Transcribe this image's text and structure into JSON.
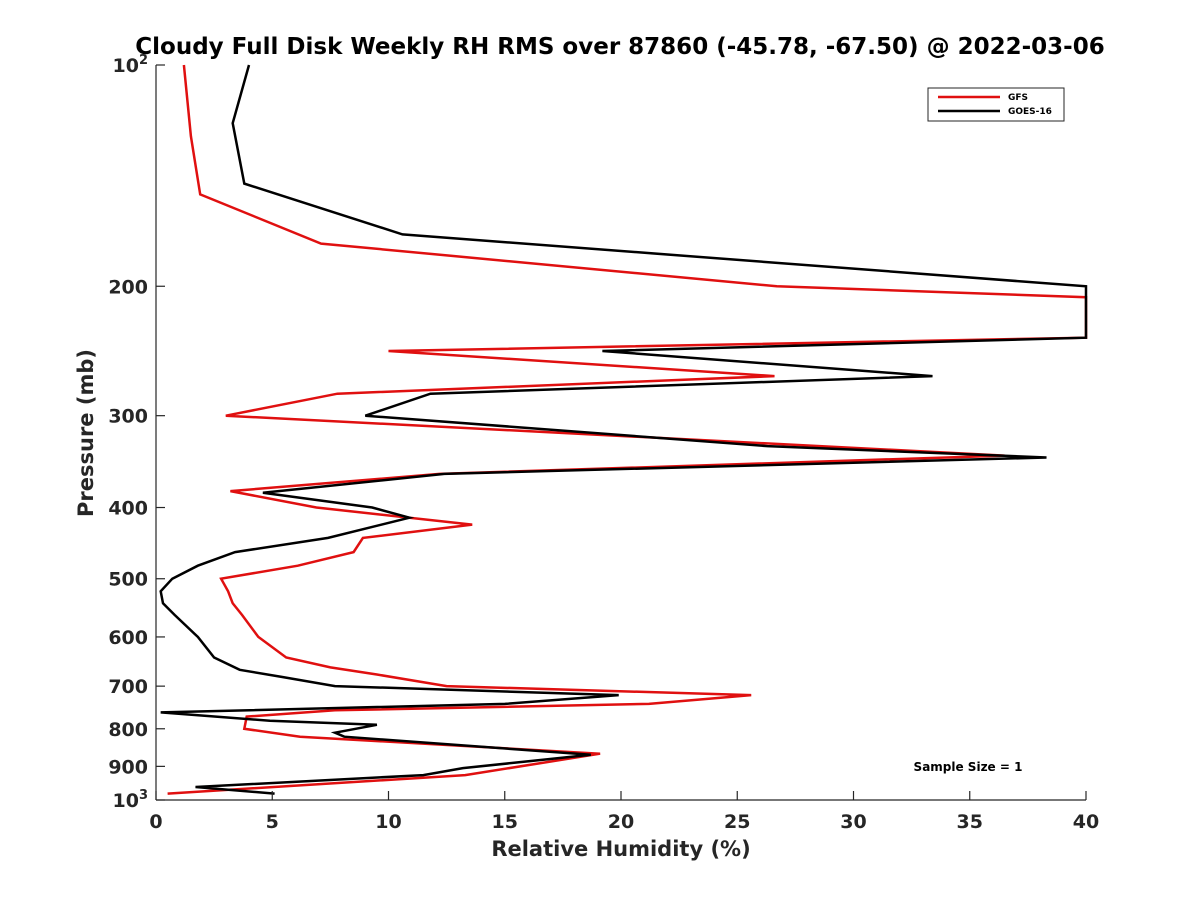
{
  "chart_data": {
    "type": "line",
    "title": "Cloudy Full Disk Weekly RH RMS over 87860 (-45.78, -67.50) @ 2022-03-06",
    "xlabel": "Relative Humidity (%)",
    "ylabel": "Pressure (mb)",
    "xlim": [
      0,
      40
    ],
    "ylim": [
      100,
      1000
    ],
    "yscale": "log",
    "y_reversed": true,
    "grid": false,
    "legend_position": "top-right",
    "x_ticks": [
      0,
      5,
      10,
      15,
      20,
      25,
      30,
      35,
      40
    ],
    "y_ticks": [
      {
        "value": 100,
        "base": "10",
        "exp": "2"
      },
      {
        "value": 200,
        "label": "200"
      },
      {
        "value": 300,
        "label": "300"
      },
      {
        "value": 400,
        "label": "400"
      },
      {
        "value": 500,
        "label": "500"
      },
      {
        "value": 600,
        "label": "600"
      },
      {
        "value": 700,
        "label": "700"
      },
      {
        "value": 800,
        "label": "800"
      },
      {
        "value": 900,
        "label": "900"
      },
      {
        "value": 1000,
        "base": "10",
        "exp": "3"
      }
    ],
    "annotation": "Sample Size = 1",
    "series": [
      {
        "name": "GFS",
        "color": "#e01010",
        "points": [
          [
            1.2,
            100
          ],
          [
            1.5,
            125
          ],
          [
            1.9,
            150
          ],
          [
            7.1,
            175
          ],
          [
            26.7,
            200
          ],
          [
            40,
            207
          ],
          [
            40,
            235
          ],
          [
            10.0,
            245
          ],
          [
            26.6,
            265
          ],
          [
            7.8,
            280
          ],
          [
            3.0,
            300
          ],
          [
            36.5,
            340
          ],
          [
            12.2,
            360
          ],
          [
            3.2,
            380
          ],
          [
            6.9,
            400
          ],
          [
            13.6,
            422
          ],
          [
            8.9,
            440
          ],
          [
            8.5,
            460
          ],
          [
            6.1,
            480
          ],
          [
            2.8,
            500
          ],
          [
            3.1,
            520
          ],
          [
            3.3,
            540
          ],
          [
            3.7,
            560
          ],
          [
            4.4,
            600
          ],
          [
            5.6,
            640
          ],
          [
            7.5,
            660
          ],
          [
            9.5,
            675
          ],
          [
            12.5,
            700
          ],
          [
            25.6,
            720
          ],
          [
            21.2,
            740
          ],
          [
            7.7,
            755
          ],
          [
            3.9,
            770
          ],
          [
            3.8,
            800
          ],
          [
            6.2,
            820
          ],
          [
            19.1,
            865
          ],
          [
            13.3,
            925
          ],
          [
            0.5,
            980
          ]
        ]
      },
      {
        "name": "GOES-16",
        "color": "#000000",
        "points": [
          [
            4.0,
            100
          ],
          [
            3.3,
            120
          ],
          [
            3.8,
            145
          ],
          [
            10.6,
            170
          ],
          [
            40,
            200
          ],
          [
            40,
            235
          ],
          [
            19.2,
            245
          ],
          [
            33.4,
            265
          ],
          [
            11.8,
            280
          ],
          [
            9.0,
            300
          ],
          [
            26.3,
            330
          ],
          [
            38.3,
            342
          ],
          [
            12.4,
            360
          ],
          [
            4.6,
            382
          ],
          [
            9.3,
            400
          ],
          [
            10.9,
            413
          ],
          [
            7.4,
            440
          ],
          [
            3.4,
            460
          ],
          [
            1.8,
            480
          ],
          [
            0.7,
            500
          ],
          [
            0.2,
            520
          ],
          [
            0.3,
            540
          ],
          [
            0.8,
            560
          ],
          [
            1.8,
            600
          ],
          [
            2.5,
            640
          ],
          [
            3.6,
            665
          ],
          [
            5.4,
            680
          ],
          [
            7.7,
            700
          ],
          [
            19.9,
            720
          ],
          [
            15.0,
            740
          ],
          [
            0.2,
            760
          ],
          [
            4.9,
            780
          ],
          [
            9.5,
            790
          ],
          [
            7.7,
            810
          ],
          [
            8.1,
            820
          ],
          [
            18.7,
            868
          ],
          [
            13.2,
            905
          ],
          [
            11.5,
            925
          ],
          [
            1.7,
            960
          ],
          [
            5.1,
            980
          ]
        ]
      }
    ]
  }
}
